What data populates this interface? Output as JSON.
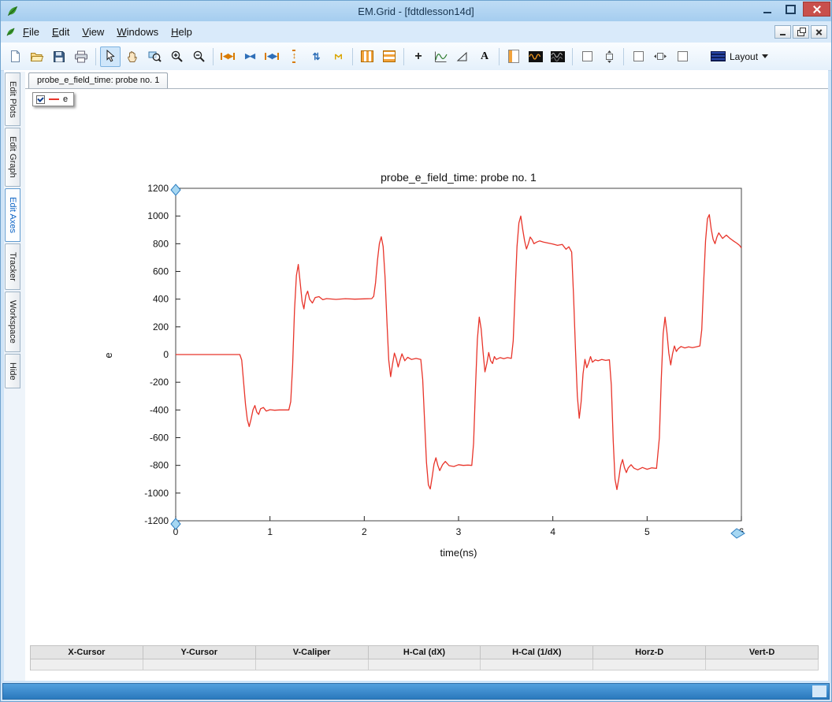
{
  "window": {
    "title": "EM.Grid - [fdtdlesson14d]"
  },
  "menu": {
    "items": [
      "File",
      "Edit",
      "View",
      "Windows",
      "Help"
    ]
  },
  "toolbar": {
    "layout_label": "Layout",
    "buttons": [
      {
        "name": "new-file"
      },
      {
        "name": "open-file"
      },
      {
        "name": "save"
      },
      {
        "name": "print"
      },
      {
        "sep": true
      },
      {
        "name": "select-cursor",
        "active": true
      },
      {
        "name": "pan-hand"
      },
      {
        "name": "zoom-region"
      },
      {
        "name": "zoom-in"
      },
      {
        "name": "zoom-out"
      },
      {
        "sep": true
      },
      {
        "name": "fit-width"
      },
      {
        "name": "compress-width"
      },
      {
        "name": "expand-width"
      },
      {
        "name": "fit-height"
      },
      {
        "name": "compress-height"
      },
      {
        "name": "autoscale"
      },
      {
        "sep": true
      },
      {
        "name": "vertical-bars"
      },
      {
        "name": "horizontal-bars"
      },
      {
        "sep": true
      },
      {
        "name": "crosshair"
      },
      {
        "name": "tracker-curve"
      },
      {
        "name": "slope-marker"
      },
      {
        "name": "text-label"
      },
      {
        "sep": true
      },
      {
        "name": "page-layout"
      },
      {
        "name": "waveform-orange"
      },
      {
        "name": "waveform-gray"
      },
      {
        "sep": true
      },
      {
        "name": "lock-vertical-checkbox"
      },
      {
        "name": "fit-vertical"
      },
      {
        "sep": true
      },
      {
        "name": "lock-horizontal-checkbox"
      },
      {
        "name": "fit-horizontal"
      },
      {
        "name": "extra-checkbox"
      }
    ]
  },
  "sidebar": {
    "tabs": [
      {
        "label": "Edit Plots",
        "selected": false
      },
      {
        "label": "Edit Graph",
        "selected": false
      },
      {
        "label": "Edit Axes",
        "selected": true
      },
      {
        "label": "Tracker",
        "selected": false
      },
      {
        "label": "Workspace",
        "selected": false
      },
      {
        "label": "Hide",
        "selected": false
      }
    ]
  },
  "doc_tab": {
    "label": "probe_e_field_time: probe no. 1"
  },
  "legend": {
    "label": "e",
    "color": "#e8342a",
    "checked": true
  },
  "chart_data": {
    "type": "line",
    "title": "probe_e_field_time: probe no. 1",
    "xlabel": "time(ns)",
    "ylabel": "e",
    "xlim": [
      0,
      6
    ],
    "ylim": [
      -1200,
      1200
    ],
    "xticks": [
      0,
      1,
      2,
      3,
      4,
      5,
      6
    ],
    "yticks": [
      -1200,
      -1000,
      -800,
      -600,
      -400,
      -200,
      0,
      200,
      400,
      600,
      800,
      1000,
      1200
    ],
    "grid": false,
    "legend_position": "top-left-overlay",
    "series": [
      {
        "name": "e",
        "color": "#e8342a",
        "points": [
          [
            0,
            0
          ],
          [
            0.2,
            0
          ],
          [
            0.4,
            0
          ],
          [
            0.6,
            0
          ],
          [
            0.68,
            0
          ],
          [
            0.7,
            -40
          ],
          [
            0.72,
            -200
          ],
          [
            0.74,
            -360
          ],
          [
            0.76,
            -470
          ],
          [
            0.78,
            -520
          ],
          [
            0.8,
            -465
          ],
          [
            0.82,
            -400
          ],
          [
            0.84,
            -368
          ],
          [
            0.86,
            -415
          ],
          [
            0.88,
            -432
          ],
          [
            0.9,
            -392
          ],
          [
            0.93,
            -382
          ],
          [
            0.96,
            -408
          ],
          [
            1,
            -398
          ],
          [
            1.05,
            -402
          ],
          [
            1.1,
            -400
          ],
          [
            1.15,
            -400
          ],
          [
            1.2,
            -400
          ],
          [
            1.22,
            -340
          ],
          [
            1.24,
            -80
          ],
          [
            1.26,
            320
          ],
          [
            1.28,
            570
          ],
          [
            1.3,
            650
          ],
          [
            1.32,
            520
          ],
          [
            1.34,
            385
          ],
          [
            1.36,
            330
          ],
          [
            1.38,
            425
          ],
          [
            1.4,
            458
          ],
          [
            1.42,
            400
          ],
          [
            1.45,
            372
          ],
          [
            1.48,
            412
          ],
          [
            1.52,
            418
          ],
          [
            1.56,
            396
          ],
          [
            1.6,
            404
          ],
          [
            1.7,
            398
          ],
          [
            1.8,
            403
          ],
          [
            1.9,
            400
          ],
          [
            2,
            402
          ],
          [
            2.08,
            404
          ],
          [
            2.1,
            420
          ],
          [
            2.12,
            520
          ],
          [
            2.14,
            680
          ],
          [
            2.16,
            800
          ],
          [
            2.18,
            850
          ],
          [
            2.2,
            780
          ],
          [
            2.22,
            560
          ],
          [
            2.24,
            240
          ],
          [
            2.26,
            -40
          ],
          [
            2.28,
            -160
          ],
          [
            2.3,
            -70
          ],
          [
            2.32,
            10
          ],
          [
            2.34,
            -30
          ],
          [
            2.36,
            -90
          ],
          [
            2.38,
            -40
          ],
          [
            2.4,
            5
          ],
          [
            2.43,
            -45
          ],
          [
            2.46,
            -20
          ],
          [
            2.5,
            -35
          ],
          [
            2.55,
            -28
          ],
          [
            2.6,
            -35
          ],
          [
            2.62,
            -180
          ],
          [
            2.64,
            -480
          ],
          [
            2.66,
            -780
          ],
          [
            2.68,
            -940
          ],
          [
            2.7,
            -970
          ],
          [
            2.72,
            -885
          ],
          [
            2.74,
            -790
          ],
          [
            2.76,
            -745
          ],
          [
            2.78,
            -800
          ],
          [
            2.8,
            -838
          ],
          [
            2.83,
            -795
          ],
          [
            2.86,
            -772
          ],
          [
            2.9,
            -802
          ],
          [
            2.95,
            -808
          ],
          [
            3,
            -795
          ],
          [
            3.05,
            -800
          ],
          [
            3.1,
            -798
          ],
          [
            3.14,
            -800
          ],
          [
            3.16,
            -640
          ],
          [
            3.18,
            -240
          ],
          [
            3.2,
            110
          ],
          [
            3.22,
            270
          ],
          [
            3.24,
            185
          ],
          [
            3.26,
            20
          ],
          [
            3.28,
            -125
          ],
          [
            3.3,
            -65
          ],
          [
            3.32,
            15
          ],
          [
            3.34,
            -45
          ],
          [
            3.36,
            -65
          ],
          [
            3.38,
            -15
          ],
          [
            3.4,
            -35
          ],
          [
            3.44,
            -22
          ],
          [
            3.48,
            -30
          ],
          [
            3.52,
            -22
          ],
          [
            3.56,
            -28
          ],
          [
            3.58,
            100
          ],
          [
            3.6,
            450
          ],
          [
            3.62,
            780
          ],
          [
            3.64,
            950
          ],
          [
            3.66,
            1000
          ],
          [
            3.68,
            905
          ],
          [
            3.7,
            822
          ],
          [
            3.72,
            762
          ],
          [
            3.74,
            800
          ],
          [
            3.76,
            848
          ],
          [
            3.78,
            830
          ],
          [
            3.8,
            800
          ],
          [
            3.83,
            812
          ],
          [
            3.86,
            820
          ],
          [
            3.9,
            812
          ],
          [
            3.95,
            805
          ],
          [
            4,
            798
          ],
          [
            4.05,
            788
          ],
          [
            4.1,
            795
          ],
          [
            4.14,
            760
          ],
          [
            4.17,
            778
          ],
          [
            4.2,
            740
          ],
          [
            4.22,
            420
          ],
          [
            4.24,
            40
          ],
          [
            4.26,
            -300
          ],
          [
            4.28,
            -460
          ],
          [
            4.3,
            -340
          ],
          [
            4.32,
            -140
          ],
          [
            4.34,
            -35
          ],
          [
            4.36,
            -95
          ],
          [
            4.38,
            -60
          ],
          [
            4.4,
            -15
          ],
          [
            4.42,
            -55
          ],
          [
            4.45,
            -38
          ],
          [
            4.48,
            -45
          ],
          [
            4.52,
            -35
          ],
          [
            4.56,
            -42
          ],
          [
            4.6,
            -38
          ],
          [
            4.62,
            -220
          ],
          [
            4.64,
            -620
          ],
          [
            4.66,
            -900
          ],
          [
            4.68,
            -975
          ],
          [
            4.7,
            -895
          ],
          [
            4.72,
            -800
          ],
          [
            4.74,
            -758
          ],
          [
            4.76,
            -818
          ],
          [
            4.78,
            -852
          ],
          [
            4.8,
            -818
          ],
          [
            4.83,
            -795
          ],
          [
            4.86,
            -820
          ],
          [
            4.9,
            -832
          ],
          [
            4.95,
            -815
          ],
          [
            5,
            -828
          ],
          [
            5.05,
            -818
          ],
          [
            5.1,
            -822
          ],
          [
            5.13,
            -600
          ],
          [
            5.15,
            -180
          ],
          [
            5.17,
            150
          ],
          [
            5.19,
            270
          ],
          [
            5.21,
            160
          ],
          [
            5.23,
            10
          ],
          [
            5.25,
            -75
          ],
          [
            5.27,
            5
          ],
          [
            5.29,
            62
          ],
          [
            5.31,
            22
          ],
          [
            5.33,
            42
          ],
          [
            5.36,
            58
          ],
          [
            5.4,
            48
          ],
          [
            5.44,
            56
          ],
          [
            5.48,
            50
          ],
          [
            5.52,
            56
          ],
          [
            5.56,
            62
          ],
          [
            5.58,
            180
          ],
          [
            5.6,
            520
          ],
          [
            5.62,
            820
          ],
          [
            5.64,
            980
          ],
          [
            5.66,
            1010
          ],
          [
            5.68,
            905
          ],
          [
            5.7,
            832
          ],
          [
            5.72,
            800
          ],
          [
            5.74,
            848
          ],
          [
            5.76,
            878
          ],
          [
            5.78,
            858
          ],
          [
            5.8,
            838
          ],
          [
            5.82,
            850
          ],
          [
            5.84,
            862
          ],
          [
            5.86,
            850
          ],
          [
            5.88,
            838
          ],
          [
            5.9,
            828
          ],
          [
            5.92,
            818
          ],
          [
            5.95,
            805
          ],
          [
            5.98,
            788
          ],
          [
            6,
            770
          ]
        ]
      }
    ]
  },
  "cursor_table": {
    "headers": [
      "X-Cursor",
      "Y-Cursor",
      "V-Caliper",
      "H-Cal (dX)",
      "H-Cal (1/dX)",
      "Horz-D",
      "Vert-D"
    ],
    "values": [
      "",
      "",
      "",
      "",
      "",
      "",
      ""
    ]
  }
}
